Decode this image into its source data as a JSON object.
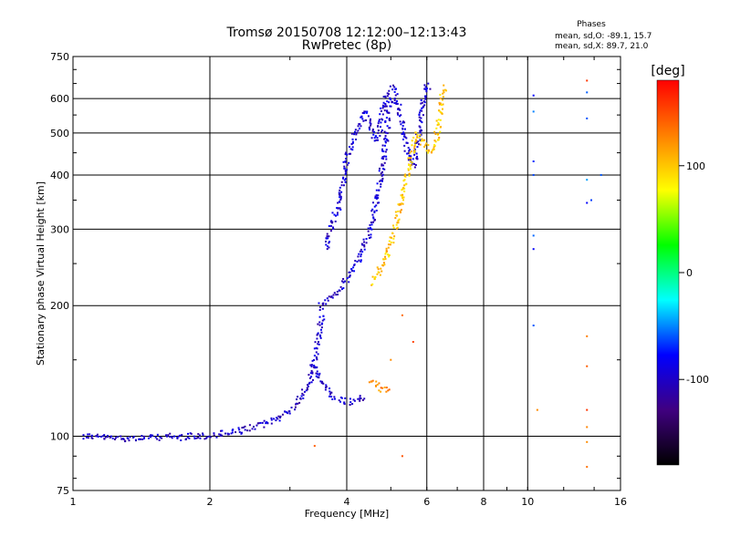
{
  "chart_data": {
    "type": "scatter",
    "title": "Tromsø 20150708 12:12:00–12:13:43",
    "subtitle": "RwPretec (8p)",
    "xlabel": "Frequency [MHz]",
    "ylabel": "Stationary phase Virtual Height [km]",
    "x_scale": "log",
    "y_scale": "log",
    "xlim": [
      1,
      16
    ],
    "ylim": [
      75,
      750
    ],
    "x_ticks": [
      1,
      2,
      4,
      6,
      8,
      10,
      16
    ],
    "x_tick_labels": [
      "1",
      "2",
      "4",
      "6",
      "8",
      "10",
      "16"
    ],
    "y_ticks": [
      75,
      100,
      200,
      300,
      400,
      500,
      600,
      750
    ],
    "y_tick_labels": [
      "75",
      "100",
      "200",
      "300",
      "400",
      "500",
      "600",
      "750"
    ],
    "grid": true,
    "legend": {
      "title": "Phases",
      "lines": [
        "mean, sd,O: -89.1, 15.7",
        "mean, sd,X:  89.7, 21.0"
      ]
    },
    "colorbar": {
      "label": "[deg]",
      "range": [
        -180,
        180
      ],
      "ticks": [
        100,
        0,
        -100
      ],
      "tick_labels": [
        "100",
        "0",
        "-100"
      ],
      "colors": [
        "#ff0000",
        "#ff8000",
        "#ffff00",
        "#00ff00",
        "#00ffff",
        "#0000ff",
        "#400080",
        "#000000"
      ]
    },
    "traces": [
      {
        "desc": "lower-layer",
        "phase": -100,
        "points": [
          [
            1.05,
            100
          ],
          [
            1.1,
            100
          ],
          [
            1.2,
            99
          ],
          [
            1.3,
            99
          ],
          [
            1.4,
            99
          ],
          [
            1.5,
            99
          ],
          [
            1.6,
            100
          ],
          [
            1.7,
            99
          ],
          [
            1.8,
            100
          ],
          [
            1.9,
            100
          ],
          [
            2.0,
            100
          ],
          [
            2.1,
            101
          ],
          [
            2.2,
            102
          ],
          [
            2.3,
            102
          ],
          [
            2.4,
            104
          ],
          [
            2.5,
            105
          ],
          [
            2.6,
            106
          ],
          [
            2.7,
            108
          ],
          [
            2.8,
            110
          ],
          [
            2.9,
            112
          ],
          [
            3.0,
            115
          ],
          [
            3.1,
            118
          ],
          [
            3.2,
            125
          ],
          [
            3.3,
            132
          ],
          [
            3.35,
            140
          ],
          [
            3.4,
            150
          ],
          [
            3.45,
            165
          ],
          [
            3.5,
            180
          ],
          [
            3.55,
            195
          ]
        ]
      },
      {
        "desc": "o-branch-upper",
        "phase": -95,
        "points": [
          [
            3.5,
            200
          ],
          [
            3.6,
            203
          ],
          [
            3.7,
            210
          ],
          [
            3.8,
            215
          ],
          [
            3.9,
            220
          ],
          [
            4.0,
            228
          ],
          [
            4.1,
            238
          ],
          [
            4.2,
            250
          ],
          [
            4.3,
            262
          ],
          [
            4.4,
            280
          ],
          [
            4.5,
            300
          ],
          [
            4.6,
            330
          ],
          [
            4.7,
            370
          ],
          [
            4.8,
            420
          ],
          [
            4.85,
            460
          ],
          [
            4.9,
            500
          ],
          [
            4.95,
            560
          ],
          [
            5.0,
            610
          ]
        ]
      },
      {
        "desc": "o-branch-steep",
        "phase": -95,
        "points": [
          [
            3.6,
            270
          ],
          [
            3.75,
            320
          ],
          [
            3.85,
            340
          ],
          [
            3.95,
            400
          ],
          [
            4.0,
            440
          ],
          [
            4.1,
            470
          ],
          [
            4.2,
            500
          ],
          [
            4.3,
            530
          ],
          [
            4.4,
            560
          ],
          [
            4.5,
            520
          ],
          [
            4.6,
            480
          ],
          [
            4.7,
            500
          ],
          [
            4.8,
            560
          ],
          [
            4.9,
            630
          ]
        ]
      },
      {
        "desc": "o-cusp",
        "phase": -95,
        "points": [
          [
            5.0,
            640
          ],
          [
            5.1,
            620
          ],
          [
            5.2,
            580
          ],
          [
            5.3,
            520
          ],
          [
            5.4,
            470
          ],
          [
            5.5,
            430
          ],
          [
            5.6,
            420
          ],
          [
            5.7,
            450
          ],
          [
            5.8,
            520
          ],
          [
            5.9,
            600
          ],
          [
            6.0,
            640
          ],
          [
            6.05,
            620
          ]
        ]
      },
      {
        "desc": "o-lower-cloud",
        "phase": -100,
        "points": [
          [
            3.4,
            145
          ],
          [
            3.5,
            135
          ],
          [
            3.6,
            130
          ],
          [
            3.7,
            125
          ],
          [
            3.8,
            122
          ],
          [
            3.9,
            121
          ],
          [
            4.0,
            120
          ],
          [
            4.1,
            120
          ],
          [
            4.2,
            121
          ],
          [
            4.3,
            122
          ],
          [
            4.4,
            123
          ]
        ]
      },
      {
        "desc": "x-branch",
        "phase": 100,
        "points": [
          [
            4.5,
            225
          ],
          [
            4.6,
            230
          ],
          [
            4.7,
            238
          ],
          [
            4.8,
            250
          ],
          [
            4.9,
            262
          ],
          [
            5.0,
            280
          ],
          [
            5.1,
            300
          ],
          [
            5.2,
            330
          ],
          [
            5.3,
            365
          ],
          [
            5.4,
            390
          ],
          [
            5.5,
            430
          ],
          [
            5.6,
            470
          ],
          [
            5.7,
            500
          ],
          [
            5.8,
            490
          ],
          [
            5.9,
            470
          ],
          [
            6.0,
            460
          ],
          [
            6.2,
            450
          ],
          [
            6.3,
            480
          ],
          [
            6.4,
            560
          ],
          [
            6.5,
            620
          ],
          [
            6.6,
            640
          ]
        ]
      },
      {
        "desc": "x-lower-patch",
        "phase": 130,
        "points": [
          [
            4.5,
            135
          ],
          [
            4.6,
            132
          ],
          [
            4.7,
            130
          ],
          [
            4.8,
            128
          ],
          [
            4.9,
            127
          ],
          [
            5.0,
            126
          ]
        ]
      },
      {
        "desc": "scattered",
        "phase": -60,
        "points": [
          [
            10.3,
            610
          ],
          [
            10.3,
            560
          ],
          [
            10.3,
            430
          ],
          [
            10.3,
            400
          ],
          [
            10.3,
            290
          ],
          [
            10.3,
            270
          ],
          [
            10.3,
            180
          ],
          [
            13.5,
            620
          ],
          [
            13.5,
            540
          ],
          [
            13.5,
            390
          ],
          [
            13.5,
            345
          ],
          [
            14.5,
            400
          ],
          [
            13.8,
            350
          ]
        ]
      },
      {
        "desc": "scattered-warm",
        "phase": 140,
        "points": [
          [
            10.5,
            115
          ],
          [
            13.5,
            660
          ],
          [
            13.5,
            170
          ],
          [
            13.5,
            145
          ],
          [
            13.5,
            115
          ],
          [
            13.5,
            105
          ],
          [
            13.5,
            85
          ],
          [
            13.5,
            97
          ],
          [
            5.3,
            190
          ],
          [
            5.3,
            90
          ],
          [
            5.6,
            165
          ],
          [
            5.0,
            150
          ],
          [
            3.4,
            95
          ]
        ]
      }
    ]
  }
}
